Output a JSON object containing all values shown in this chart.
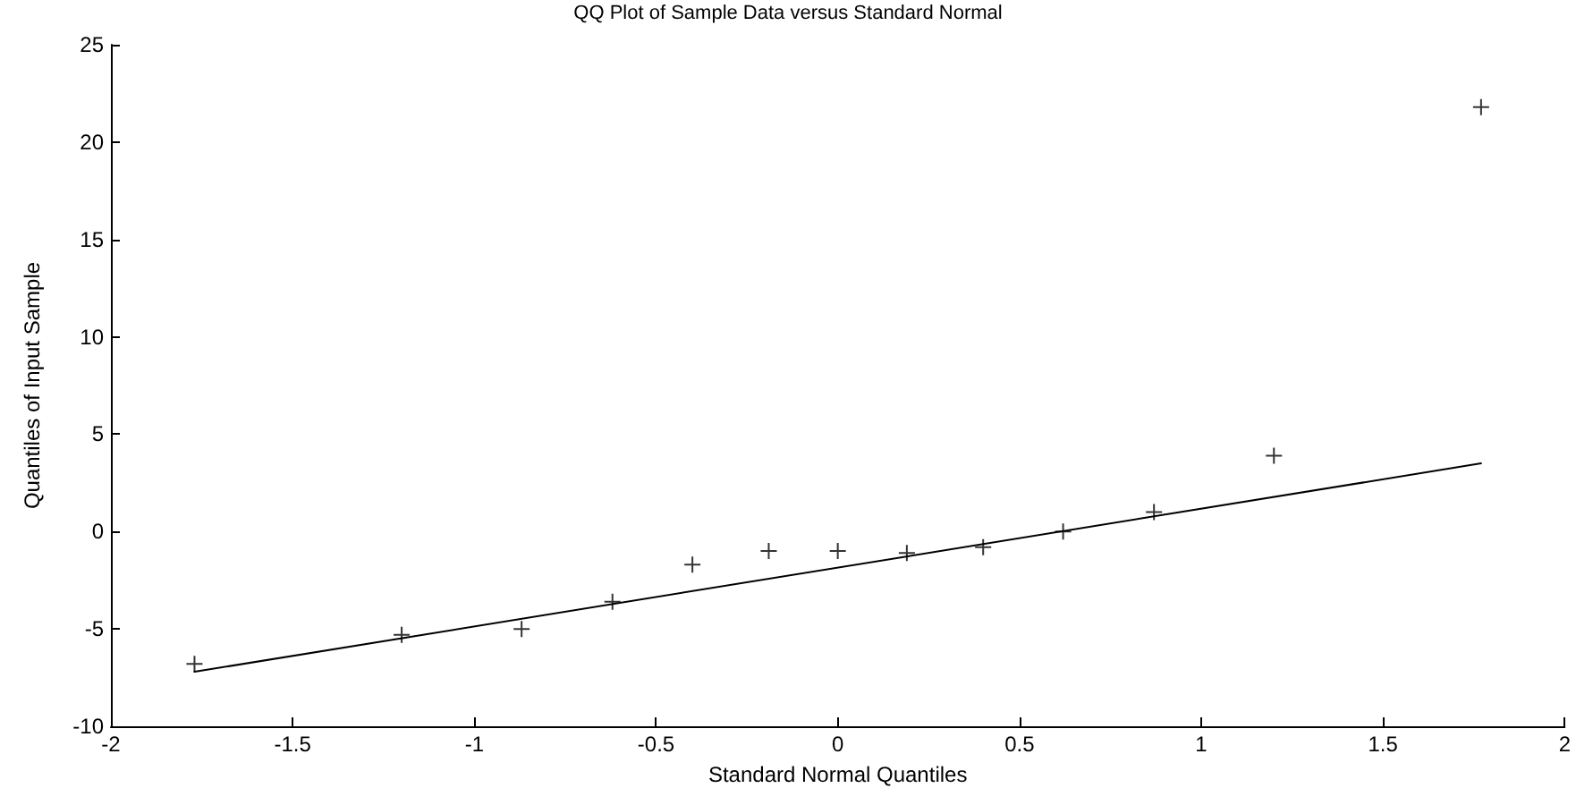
{
  "chart_data": {
    "type": "scatter",
    "title": "QQ Plot of Sample Data versus Standard Normal",
    "xlabel": "Standard Normal Quantiles",
    "ylabel": "Quantiles of Input Sample",
    "xlim": [
      -2,
      2
    ],
    "xticks": [
      -2,
      -1.5,
      -1,
      -0.5,
      0,
      0.5,
      1,
      1.5,
      2
    ],
    "ylim": [
      -10,
      25
    ],
    "yticks": [
      -10,
      -5,
      0,
      5,
      10,
      15,
      20,
      25
    ],
    "grid": false,
    "series": [
      {
        "color": "#000000",
        "marker": "cross",
        "x": [
          -1.77,
          -1.2,
          -0.87,
          -0.62,
          -0.4,
          -0.19,
          0,
          0.19,
          0.4,
          0.62,
          0.87,
          1.2,
          1.77
        ],
        "values": [
          -6.8,
          -5.3,
          -5.0,
          -3.6,
          -1.7,
          -1.0,
          -1.0,
          -1.1,
          -0.8,
          0,
          1.0,
          3.9,
          21.8
        ]
      },
      {
        "type": "line",
        "color": "#000000",
        "marker": "none",
        "line_style": "solid",
        "x": [
          -1.77,
          1.77
        ],
        "values": [
          -7.2,
          3.5
        ]
      }
    ]
  }
}
